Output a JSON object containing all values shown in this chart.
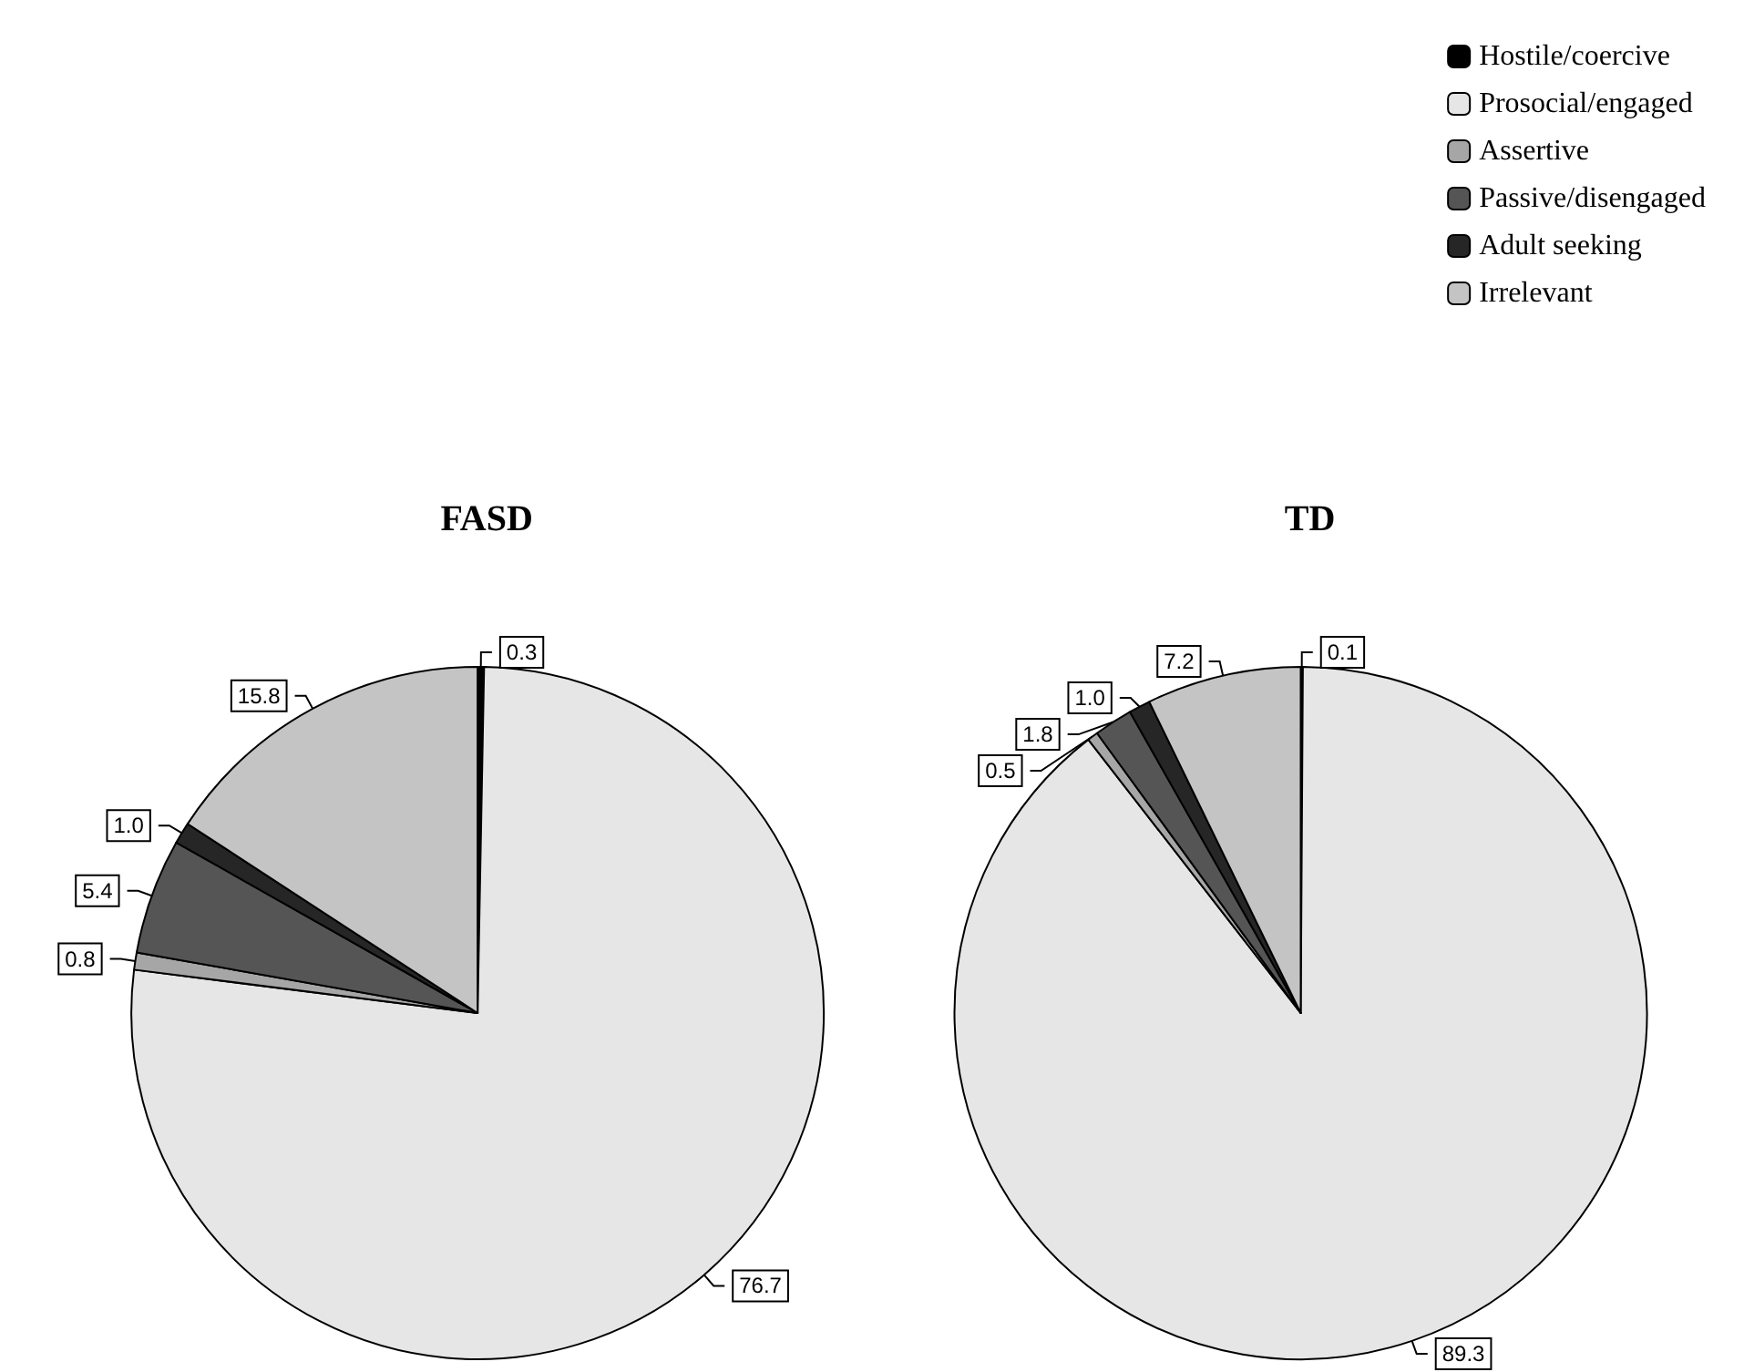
{
  "chart_data": {
    "type": "pie",
    "categories": [
      "Hostile/coercive",
      "Prosocial/engaged",
      "Assertive",
      "Passive/disengaged",
      "Adult seeking",
      "Irrelevant"
    ],
    "colors": [
      "#000000",
      "#e6e6e6",
      "#a6a6a6",
      "#555555",
      "#262626",
      "#c4c4c4"
    ],
    "legend": "top right",
    "series": [
      {
        "name": "FASD",
        "values": [
          0.3,
          76.7,
          0.8,
          5.4,
          1.0,
          15.8
        ],
        "value_labels": [
          "0.3",
          "76.7",
          "0.8",
          "5.4",
          "1.0",
          "15.8"
        ]
      },
      {
        "name": "TD",
        "values": [
          0.1,
          89.3,
          0.5,
          1.8,
          1.0,
          7.2
        ],
        "value_labels": [
          "0.1",
          "89.3",
          "0.5",
          "1.8",
          "1.0",
          "7.2"
        ]
      }
    ]
  }
}
